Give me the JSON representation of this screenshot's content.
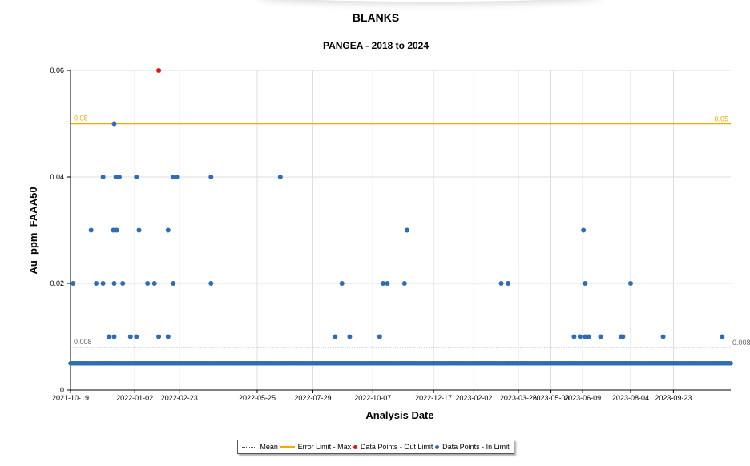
{
  "chart_data": {
    "type": "scatter",
    "title": "BLANKS",
    "subtitle": "PANGEA - 2018 to 2024",
    "xlabel": "Analysis Date",
    "ylabel": "Au_ppm_FAAA50",
    "xlim": [
      "2021-10-19",
      "2023-11-29"
    ],
    "ylim": [
      0,
      0.06
    ],
    "x_ticks": [
      "2021-10-19",
      "2022-01-02",
      "2022-02-23",
      "2022-05-25",
      "2022-07-29",
      "2022-10-07",
      "2022-12-17",
      "2023-02-02",
      "2023-03-26",
      "2023-05-03",
      "2023-06-09",
      "2023-08-04",
      "2023-09-23"
    ],
    "y_ticks": [
      0,
      0.02,
      0.04,
      0.06
    ],
    "grid": true,
    "legend_position": "bottom-center",
    "reference_lines": [
      {
        "name": "Mean",
        "value": 0.008,
        "label": "0.008",
        "color": "#666666",
        "style": "dotted"
      },
      {
        "name": "Error Limit - Max",
        "value": 0.05,
        "label": "0.05",
        "color": "#f2a900",
        "style": "solid"
      }
    ],
    "baseline": {
      "name": "Data Points - In Limit",
      "value": 0.005,
      "from": "2021-10-19",
      "to": "2023-11-29",
      "color": "#2e6db4"
    },
    "series": [
      {
        "name": "Data Points - In Limit",
        "color": "#2e6db4",
        "points": [
          {
            "x": "2021-10-22",
            "y": 0.02
          },
          {
            "x": "2021-11-12",
            "y": 0.03
          },
          {
            "x": "2021-11-18",
            "y": 0.02
          },
          {
            "x": "2021-11-26",
            "y": 0.02
          },
          {
            "x": "2021-11-26",
            "y": 0.04
          },
          {
            "x": "2021-12-03",
            "y": 0.01
          },
          {
            "x": "2021-12-08",
            "y": 0.03
          },
          {
            "x": "2021-12-09",
            "y": 0.01
          },
          {
            "x": "2021-12-09",
            "y": 0.02
          },
          {
            "x": "2021-12-09",
            "y": 0.05
          },
          {
            "x": "2021-12-11",
            "y": 0.04
          },
          {
            "x": "2021-12-12",
            "y": 0.03
          },
          {
            "x": "2021-12-13",
            "y": 0.04
          },
          {
            "x": "2021-12-15",
            "y": 0.04
          },
          {
            "x": "2021-12-19",
            "y": 0.02
          },
          {
            "x": "2021-12-28",
            "y": 0.01
          },
          {
            "x": "2022-01-04",
            "y": 0.01
          },
          {
            "x": "2022-01-04",
            "y": 0.04
          },
          {
            "x": "2022-01-07",
            "y": 0.03
          },
          {
            "x": "2022-01-17",
            "y": 0.02
          },
          {
            "x": "2022-01-25",
            "y": 0.02
          },
          {
            "x": "2022-01-30",
            "y": 0.01
          },
          {
            "x": "2022-02-10",
            "y": 0.01
          },
          {
            "x": "2022-02-10",
            "y": 0.03
          },
          {
            "x": "2022-02-16",
            "y": 0.02
          },
          {
            "x": "2022-02-16",
            "y": 0.04
          },
          {
            "x": "2022-02-21",
            "y": 0.04
          },
          {
            "x": "2022-04-01",
            "y": 0.02
          },
          {
            "x": "2022-04-01",
            "y": 0.04
          },
          {
            "x": "2022-06-21",
            "y": 0.04
          },
          {
            "x": "2022-08-24",
            "y": 0.01
          },
          {
            "x": "2022-09-01",
            "y": 0.02
          },
          {
            "x": "2022-09-10",
            "y": 0.01
          },
          {
            "x": "2022-10-15",
            "y": 0.01
          },
          {
            "x": "2022-10-19",
            "y": 0.02
          },
          {
            "x": "2022-10-24",
            "y": 0.02
          },
          {
            "x": "2022-11-13",
            "y": 0.02
          },
          {
            "x": "2022-11-16",
            "y": 0.03
          },
          {
            "x": "2023-03-06",
            "y": 0.02
          },
          {
            "x": "2023-03-14",
            "y": 0.02
          },
          {
            "x": "2023-05-30",
            "y": 0.01
          },
          {
            "x": "2023-06-06",
            "y": 0.01
          },
          {
            "x": "2023-06-10",
            "y": 0.03
          },
          {
            "x": "2023-06-12",
            "y": 0.01
          },
          {
            "x": "2023-06-12",
            "y": 0.02
          },
          {
            "x": "2023-06-16",
            "y": 0.01
          },
          {
            "x": "2023-06-30",
            "y": 0.01
          },
          {
            "x": "2023-07-24",
            "y": 0.01
          },
          {
            "x": "2023-07-26",
            "y": 0.01
          },
          {
            "x": "2023-08-04",
            "y": 0.02
          },
          {
            "x": "2023-09-11",
            "y": 0.01
          },
          {
            "x": "2023-11-19",
            "y": 0.01
          }
        ]
      },
      {
        "name": "Data Points - Out Limit",
        "color": "#e81010",
        "points": [
          {
            "x": "2022-01-30",
            "y": 0.06
          }
        ]
      }
    ]
  },
  "legend": {
    "mean": "Mean",
    "error_limit": "Error Limit - Max",
    "out_limit": "Data Points - Out Limit",
    "in_limit": "Data Points - In Limit"
  }
}
